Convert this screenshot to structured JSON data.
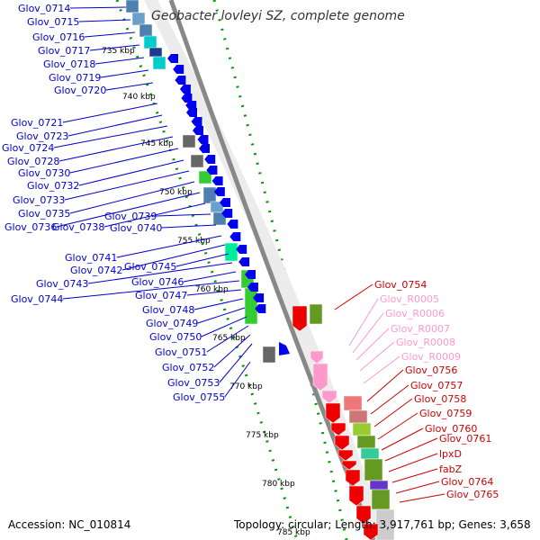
{
  "genome": {
    "title": "Geobacter lovleyi SZ, complete genome",
    "accession": "Accession: NC_010814",
    "topology": "Topology: circular; Length: 3,917,761 bp; Genes: 3,658"
  },
  "kbp_ticks": [
    "735 kbp",
    "740 kbp",
    "745 kbp",
    "750 kbp",
    "755 kbp",
    "760 kbp",
    "765 kbp",
    "770 kbp",
    "775 kbp",
    "780 kbp",
    "785 kbp"
  ],
  "left_labels": [
    "Glov_0714",
    "Glov_0715",
    "Glov_0716",
    "Glov_0717",
    "Glov_0718",
    "Glov_0719",
    "Glov_0720",
    "Glov_0721",
    "Glov_0723",
    "Glov_0724",
    "Glov_0728",
    "Glov_0730",
    "Glov_0732",
    "Glov_0733",
    "Glov_0735",
    "Glov_0736",
    "Glov_0738",
    "Glov_0739",
    "Glov_0740",
    "Glov_0741",
    "Glov_0742",
    "Glov_0745",
    "Glov_0743",
    "Glov_0746",
    "Glov_0744",
    "Glov_0747",
    "Glov_0748",
    "Glov_0749",
    "Glov_0750",
    "Glov_0751",
    "Glov_0752",
    "Glov_0753",
    "Glov_0755"
  ],
  "right_labels": [
    {
      "text": "Glov_0754",
      "color": "#cc0000"
    },
    {
      "text": "Glov_R0005",
      "color": "#ff99cc"
    },
    {
      "text": "Glov_R0006",
      "color": "#ff99cc"
    },
    {
      "text": "Glov_R0007",
      "color": "#ff99cc"
    },
    {
      "text": "Glov_R0008",
      "color": "#ff99cc"
    },
    {
      "text": "Glov_R0009",
      "color": "#ff99cc"
    },
    {
      "text": "Glov_0756",
      "color": "#cc0000"
    },
    {
      "text": "Glov_0757",
      "color": "#cc0000"
    },
    {
      "text": "Glov_0758",
      "color": "#cc0000"
    },
    {
      "text": "Glov_0759",
      "color": "#cc0000"
    },
    {
      "text": "Glov_0760",
      "color": "#cc0000"
    },
    {
      "text": "Glov_0761",
      "color": "#cc0000"
    },
    {
      "text": "lpxD",
      "color": "#cc0000"
    },
    {
      "text": "fabZ",
      "color": "#cc0000"
    },
    {
      "text": "Glov_0764",
      "color": "#cc0000"
    },
    {
      "text": "Glov_0765",
      "color": "#cc0000"
    }
  ],
  "colors": {
    "left_label": "#0000cc",
    "reverse_gene": "#0000ee",
    "forward_gene": "#ee0000",
    "backbone": "#888888",
    "dots": "#009900"
  }
}
